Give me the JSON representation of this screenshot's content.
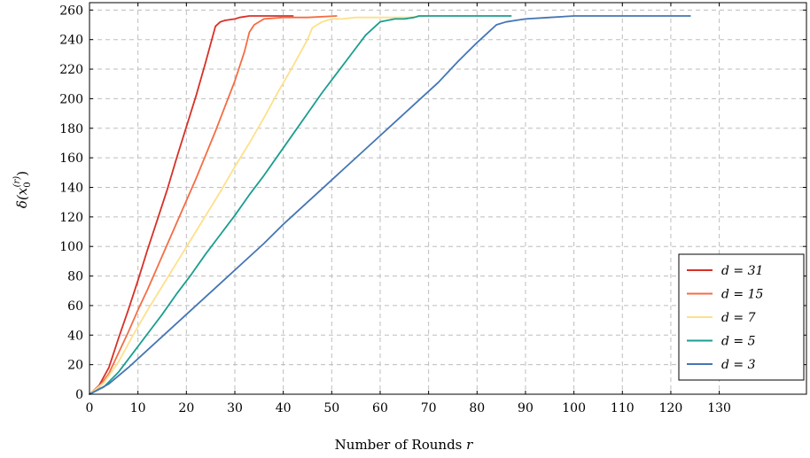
{
  "chart_data": {
    "type": "line",
    "xlabel": "Number of Rounds r",
    "ylabel": "δ(x0(r))",
    "ylabel_parts": {
      "base": "δ(x",
      "sub": "0",
      "sup": "(r)",
      "close": ")"
    },
    "xlim": [
      0,
      148
    ],
    "ylim": [
      0,
      265
    ],
    "xticks": [
      0,
      10,
      20,
      30,
      40,
      50,
      60,
      70,
      80,
      90,
      100,
      110,
      120,
      130
    ],
    "yticks": [
      0,
      20,
      40,
      60,
      80,
      100,
      120,
      140,
      160,
      180,
      200,
      220,
      240,
      260
    ],
    "grid": true,
    "legend_position": "bottom-right",
    "series": [
      {
        "name": "d = 31",
        "color": "#d73027",
        "x": [
          0,
          2,
          4,
          6,
          8,
          10,
          12,
          14,
          16,
          18,
          20,
          22,
          24,
          26,
          27,
          28,
          30,
          31,
          33,
          36,
          40,
          42
        ],
        "y": [
          0,
          6,
          18,
          38,
          57,
          77,
          98,
          118,
          138,
          160,
          181,
          202,
          225,
          249,
          252,
          253,
          254,
          255,
          256,
          256,
          256,
          256
        ]
      },
      {
        "name": "d = 15",
        "color": "#f46d43",
        "x": [
          0,
          2,
          4,
          6,
          8,
          10,
          12,
          14,
          16,
          18,
          20,
          22,
          24,
          26,
          28,
          30,
          32,
          33,
          34,
          36,
          40,
          45,
          51
        ],
        "y": [
          0,
          5,
          14,
          28,
          42,
          57,
          71,
          86,
          101,
          116,
          131,
          146,
          162,
          178,
          195,
          212,
          232,
          245,
          250,
          254,
          255,
          255,
          256
        ]
      },
      {
        "name": "d = 7",
        "color": "#fee08b",
        "x": [
          0,
          3,
          6,
          9,
          12,
          15,
          18,
          21,
          24,
          27,
          30,
          33,
          36,
          39,
          42,
          45,
          46,
          48,
          50,
          52,
          55,
          60,
          66,
          70
        ],
        "y": [
          0,
          8,
          22,
          40,
          57,
          73,
          89,
          105,
          121,
          137,
          154,
          170,
          187,
          205,
          222,
          240,
          248,
          252,
          254,
          254,
          255,
          255,
          255,
          256
        ]
      },
      {
        "name": "d = 5",
        "color": "#1a9e8f",
        "x": [
          0,
          3,
          6,
          9,
          12,
          15,
          18,
          21,
          24,
          27,
          30,
          33,
          36,
          39,
          42,
          45,
          48,
          51,
          54,
          57,
          60,
          63,
          65,
          67,
          68,
          70,
          75,
          80,
          87
        ],
        "y": [
          0,
          5,
          15,
          28,
          41,
          54,
          68,
          81,
          95,
          108,
          121,
          135,
          148,
          162,
          176,
          190,
          204,
          217,
          230,
          243,
          252,
          254,
          254,
          255,
          256,
          256,
          256,
          256,
          256
        ]
      },
      {
        "name": "d = 3",
        "color": "#4575b4",
        "x": [
          0,
          4,
          8,
          12,
          16,
          20,
          24,
          28,
          32,
          36,
          40,
          44,
          48,
          52,
          56,
          60,
          64,
          68,
          72,
          76,
          80,
          82,
          84,
          86,
          88,
          90,
          95,
          100,
          110,
          120,
          124
        ],
        "y": [
          0,
          7,
          18,
          30,
          42,
          54,
          66,
          78,
          90,
          102,
          115,
          127,
          139,
          151,
          163,
          175,
          187,
          199,
          211,
          225,
          238,
          244,
          250,
          252,
          253,
          254,
          255,
          256,
          256,
          256,
          256
        ]
      }
    ]
  }
}
